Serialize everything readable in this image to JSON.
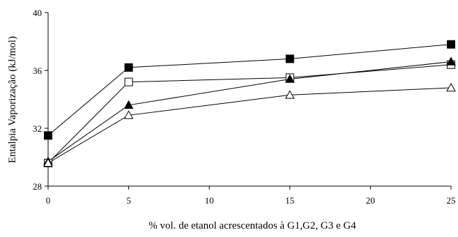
{
  "chart_data": {
    "type": "line",
    "title": "",
    "xlabel": "% vol. de etanol acrescentados à G1,G2, G3 e G4",
    "ylabel": "Entalpia  Vaporização (kJ/mol)",
    "x": [
      0,
      5,
      15,
      25
    ],
    "xlim": [
      0,
      25
    ],
    "ylim": [
      28,
      40
    ],
    "x_ticks": [
      0,
      5,
      10,
      15,
      20,
      25
    ],
    "y_ticks": [
      28,
      32,
      36,
      40
    ],
    "grid": false,
    "legend": "none",
    "series": [
      {
        "marker": "filled-square",
        "color": "#000000",
        "values": [
          31.5,
          36.2,
          36.8,
          37.8
        ]
      },
      {
        "marker": "open-square",
        "color": "#000000",
        "values": [
          29.6,
          35.2,
          35.5,
          36.4
        ]
      },
      {
        "marker": "filled-triangle",
        "color": "#000000",
        "values": [
          29.7,
          33.6,
          35.4,
          36.6
        ]
      },
      {
        "marker": "open-triangle",
        "color": "#000000",
        "values": [
          29.6,
          32.9,
          34.3,
          34.8
        ]
      }
    ]
  }
}
